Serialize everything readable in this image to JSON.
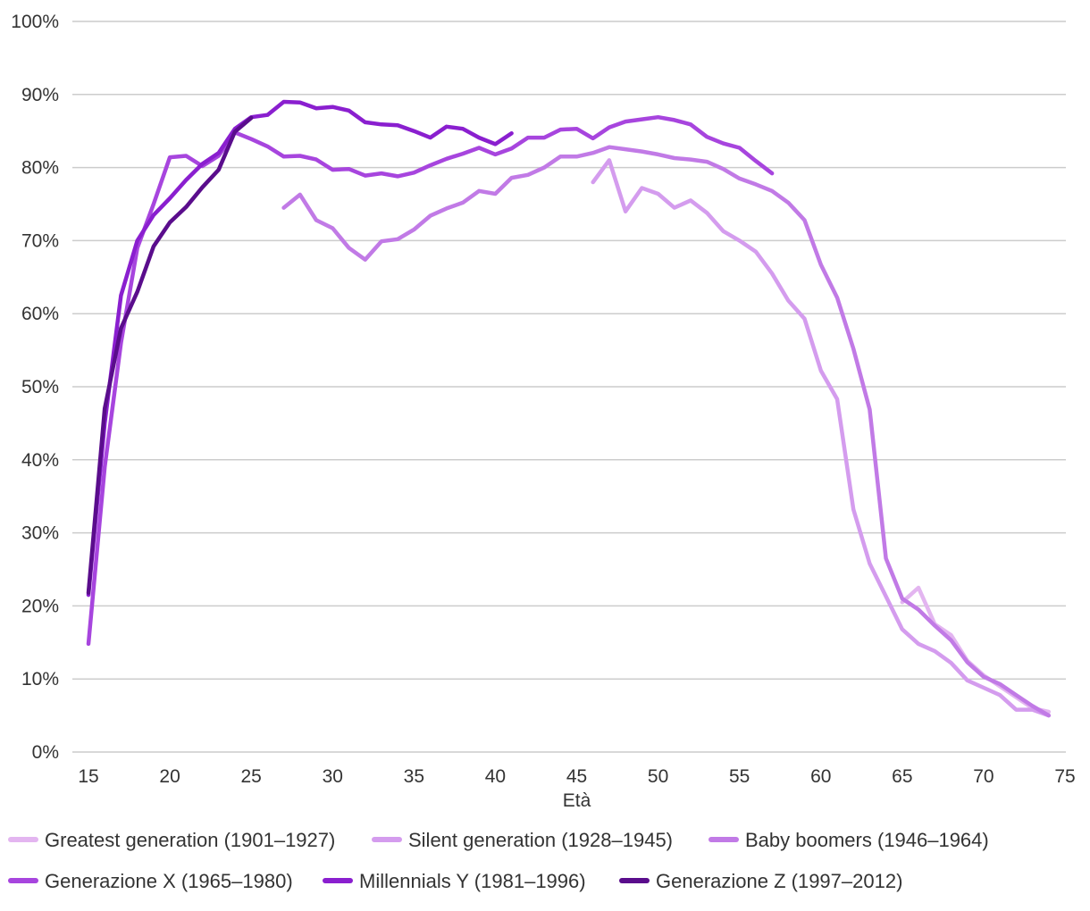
{
  "chart_data": {
    "type": "line",
    "title": "",
    "xlabel": "Età",
    "ylabel": "",
    "xlim": [
      15,
      75
    ],
    "ylim": [
      0,
      100
    ],
    "xticks": [
      15,
      20,
      25,
      30,
      35,
      40,
      45,
      50,
      55,
      60,
      65,
      70,
      75
    ],
    "yticks": [
      0,
      10,
      20,
      30,
      40,
      50,
      60,
      70,
      80,
      90,
      100
    ],
    "ytick_labels": [
      "0%",
      "10%",
      "20%",
      "30%",
      "40%",
      "50%",
      "60%",
      "70%",
      "80%",
      "90%",
      "100%"
    ],
    "grid": true,
    "legend_position": "bottom",
    "series": [
      {
        "name": "Greatest generation (1901–1927)",
        "color": "#e3b5f0",
        "x": [
          65,
          66,
          67,
          68,
          69,
          70,
          71,
          72,
          73,
          74
        ],
        "values": [
          20.5,
          22.5,
          17.5,
          16,
          12.5,
          10.5,
          9,
          7.5,
          6,
          5.5
        ]
      },
      {
        "name": "Silent generation (1928–1945)",
        "color": "#d49cee",
        "x": [
          46,
          47,
          48,
          49,
          50,
          51,
          52,
          53,
          54,
          55,
          56,
          57,
          58,
          59,
          60,
          61,
          62,
          63,
          64,
          65,
          66,
          67,
          68,
          69,
          70,
          71,
          72,
          73,
          74
        ],
        "values": [
          78,
          81,
          74,
          77.2,
          76.4,
          74.5,
          75.5,
          73.8,
          71.3,
          70,
          68.5,
          65.5,
          61.8,
          59.3,
          52.2,
          48.3,
          33.2,
          25.8,
          21.3,
          16.8,
          14.8,
          13.8,
          12.2,
          9.8,
          8.8,
          7.8,
          5.8,
          5.8,
          5
        ]
      },
      {
        "name": "Baby boomers (1946–1964)",
        "color": "#c17ae6",
        "x": [
          27,
          28,
          29,
          30,
          31,
          32,
          33,
          34,
          35,
          36,
          37,
          38,
          39,
          40,
          41,
          42,
          43,
          44,
          45,
          46,
          47,
          48,
          49,
          50,
          51,
          52,
          53,
          54,
          55,
          56,
          57,
          58,
          59,
          60,
          61,
          62,
          63,
          64,
          65,
          66,
          67,
          68,
          69,
          70,
          71,
          72,
          73,
          74
        ],
        "values": [
          74.5,
          76.3,
          72.8,
          71.7,
          69,
          67.4,
          69.9,
          70.2,
          71.5,
          73.4,
          74.4,
          75.2,
          76.8,
          76.4,
          78.6,
          79,
          80,
          81.5,
          81.5,
          82,
          82.8,
          82.5,
          82.2,
          81.8,
          81.3,
          81.1,
          80.8,
          79.8,
          78.5,
          77.7,
          76.8,
          75.2,
          72.8,
          66.7,
          62.2,
          55.2,
          46.9,
          26.5,
          21,
          19.5,
          17.3,
          15.3,
          12.3,
          10.3,
          9.3,
          7.8,
          6.3,
          5
        ]
      },
      {
        "name": "Generazione X (1965–1980)",
        "color": "#a745de",
        "x": [
          15,
          16,
          17,
          18,
          19,
          20,
          21,
          22,
          23,
          24,
          25,
          26,
          27,
          28,
          29,
          30,
          31,
          32,
          33,
          34,
          35,
          36,
          37,
          38,
          39,
          40,
          41,
          42,
          43,
          44,
          45,
          46,
          47,
          48,
          49,
          50,
          51,
          52,
          53,
          54,
          55,
          56,
          57
        ],
        "values": [
          14.8,
          39,
          56,
          69,
          75,
          81.4,
          81.6,
          80.2,
          81.6,
          84.8,
          83.9,
          82.9,
          81.5,
          81.6,
          81.1,
          79.7,
          79.8,
          78.9,
          79.2,
          78.8,
          79.3,
          80.3,
          81.2,
          81.9,
          82.7,
          81.8,
          82.6,
          84.1,
          84.1,
          85.2,
          85.3,
          84,
          85.5,
          86.3,
          86.6,
          86.9,
          86.5,
          85.9,
          84.2,
          83.3,
          82.7,
          80.9,
          79.2
        ]
      },
      {
        "name": "Millennials Y (1981–1996)",
        "color": "#8a1fcf",
        "x": [
          15,
          16,
          17,
          18,
          19,
          20,
          21,
          22,
          23,
          24,
          25,
          26,
          27,
          28,
          29,
          30,
          31,
          32,
          33,
          34,
          35,
          36,
          37,
          38,
          39,
          40,
          41
        ],
        "values": [
          21.5,
          45,
          62.5,
          70,
          73.5,
          75.8,
          78.3,
          80.5,
          82,
          85.3,
          86.9,
          87.2,
          89,
          88.9,
          88.1,
          88.3,
          87.8,
          86.2,
          85.9,
          85.8,
          85,
          84.1,
          85.6,
          85.3,
          84.1,
          83.2,
          84.7
        ]
      },
      {
        "name": "Generazione Z (1997–2012)",
        "color": "#5a0d8c",
        "x": [
          15,
          16,
          17,
          18,
          19,
          20,
          21,
          22,
          23,
          24,
          25
        ],
        "values": [
          21.8,
          47,
          58,
          63,
          69.2,
          72.5,
          74.6,
          77.3,
          79.7,
          84.9,
          86.8
        ]
      }
    ]
  }
}
